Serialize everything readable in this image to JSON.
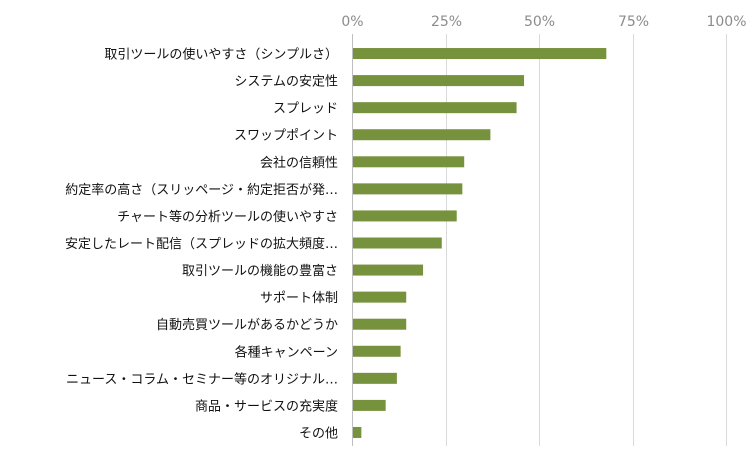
{
  "chart_data": {
    "type": "bar",
    "orientation": "horizontal",
    "categories": [
      "取引ツールの使いやすさ（シンプルさ）",
      "システムの安定性",
      "スプレッド",
      "スワップポイント",
      "会社の信頼性",
      "約定率の高さ（スリッページ・約定拒否が発…",
      "チャート等の分析ツールの使いやすさ",
      "安定したレート配信（スプレッドの拡大頻度…",
      "取引ツールの機能の豊富さ",
      "サポート体制",
      "自動売買ツールがあるかどうか",
      "各種キャンペーン",
      "ニュース・コラム・セミナー等のオリジナル…",
      "商品・サービスの充実度",
      "その他"
    ],
    "values": [
      68,
      46,
      44,
      37,
      30,
      29.5,
      28,
      24,
      19,
      14.5,
      14.5,
      13,
      12,
      9,
      2.5
    ],
    "xlim": [
      0,
      100
    ],
    "xticks": [
      0,
      25,
      50,
      75,
      100
    ],
    "xtick_labels": [
      "0%",
      "25%",
      "50%",
      "75%",
      "100%"
    ],
    "title": "",
    "xlabel": "",
    "ylabel": "",
    "grid": true,
    "bar_color": "#76923c"
  }
}
